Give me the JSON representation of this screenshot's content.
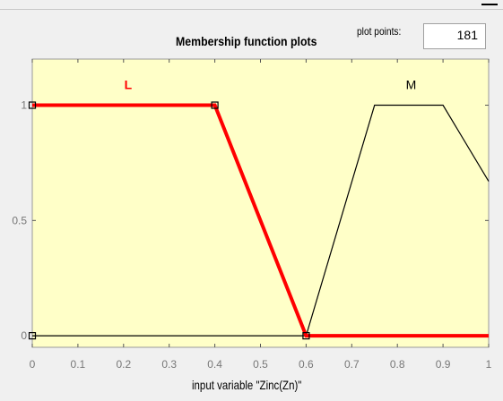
{
  "plot_points": {
    "label": "plot points:",
    "value": "181"
  },
  "colors": {
    "axes_bg": "#ffffc8",
    "selected": "#ff0000",
    "unselected": "#000000",
    "grid": "#c8c8c8"
  },
  "chart_data": {
    "type": "line",
    "title": "Membership function plots",
    "xlabel": "input variable \"Zinc(Zn)\"",
    "ylabel": "",
    "xlim": [
      0,
      1
    ],
    "ylim": [
      -0.05,
      1.2
    ],
    "x_ticks": [
      "0",
      "0.1",
      "0.2",
      "0.3",
      "0.4",
      "0.5",
      "0.6",
      "0.7",
      "0.8",
      "0.9",
      "1"
    ],
    "y_ticks": [
      "0",
      "0.5",
      "1"
    ],
    "grid": false,
    "series": [
      {
        "name": "L",
        "selected": true,
        "x": [
          0,
          0.4,
          0.6,
          1
        ],
        "y": [
          1,
          1,
          0,
          0
        ],
        "label_x": 0.21,
        "label_y": 1.09
      },
      {
        "name": "M",
        "selected": false,
        "x": [
          0,
          0.6,
          0.75,
          0.9,
          1
        ],
        "y": [
          0,
          0,
          1,
          1,
          0.67
        ],
        "label_x": 0.83,
        "label_y": 1.09
      }
    ],
    "markers": [
      {
        "x": 0,
        "y": 1
      },
      {
        "x": 0.4,
        "y": 1
      },
      {
        "x": 0,
        "y": 0
      },
      {
        "x": 0.6,
        "y": 0
      }
    ]
  }
}
